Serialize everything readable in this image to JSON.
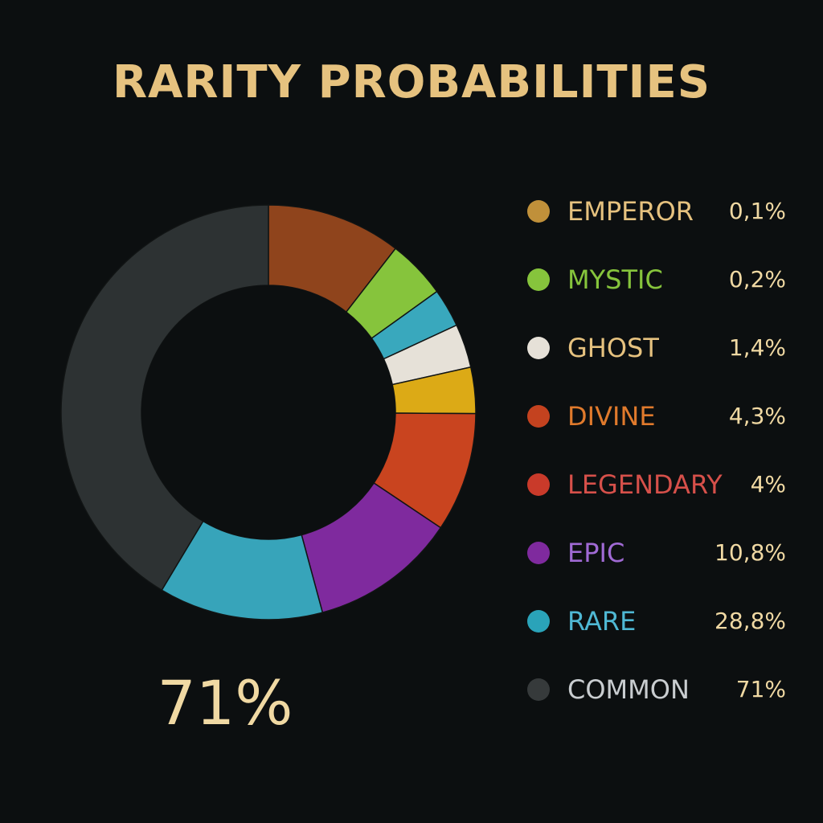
{
  "title": "RARITY PROBABILITIES",
  "headline_value": "71%",
  "colors": {
    "background": "#0c0f10",
    "title": "#e6c27f",
    "value_text": "#f0d9a3",
    "donut_hole": "#0c0f10"
  },
  "chart_data": {
    "type": "pie",
    "style": "donut",
    "title": "RARITY PROBABILITIES",
    "legend_position": "right",
    "legend": [
      {
        "label": "EMPEROR",
        "value_text": "0,1%",
        "value": 0.1,
        "color": "#c0903a",
        "label_color": "#e6c27f"
      },
      {
        "label": "MYSTIC",
        "value_text": "0,2%",
        "value": 0.2,
        "color": "#86c43c",
        "label_color": "#86c43c"
      },
      {
        "label": "GHOST",
        "value_text": "1,4%",
        "value": 1.4,
        "color": "#e6e1d8",
        "label_color": "#e6c27f"
      },
      {
        "label": "DIVINE",
        "value_text": "4,3%",
        "value": 4.3,
        "color": "#c4421f",
        "label_color": "#e07a2c"
      },
      {
        "label": "LEGENDARY",
        "value_text": "4%",
        "value": 4.0,
        "color": "#c93a2a",
        "label_color": "#d6504a"
      },
      {
        "label": "EPIC",
        "value_text": "10,8%",
        "value": 10.8,
        "color": "#7f2a9e",
        "label_color": "#a06ad4"
      },
      {
        "label": "RARE",
        "value_text": "28,8%",
        "value": 28.8,
        "color": "#2aa3b9",
        "label_color": "#4fb8d4"
      },
      {
        "label": "COMMON",
        "value_text": "71%",
        "value": 71,
        "color": "#363a3b",
        "label_color": "#c9cdd0"
      }
    ],
    "slices": [
      {
        "color": "#8f441c",
        "value": 10.5
      },
      {
        "color": "#86c43c",
        "value": 4.6
      },
      {
        "color": "#39a8bd",
        "value": 3.0
      },
      {
        "color": "#e6e1d8",
        "value": 3.4
      },
      {
        "color": "#dcaa16",
        "value": 3.6
      },
      {
        "color": "#c9441f",
        "value": 9.3
      },
      {
        "color": "#7f2a9e",
        "value": 11.4
      },
      {
        "color": "#37a4ba",
        "value": 12.8
      },
      {
        "color": "#2d3233",
        "value": 41.4
      }
    ]
  }
}
